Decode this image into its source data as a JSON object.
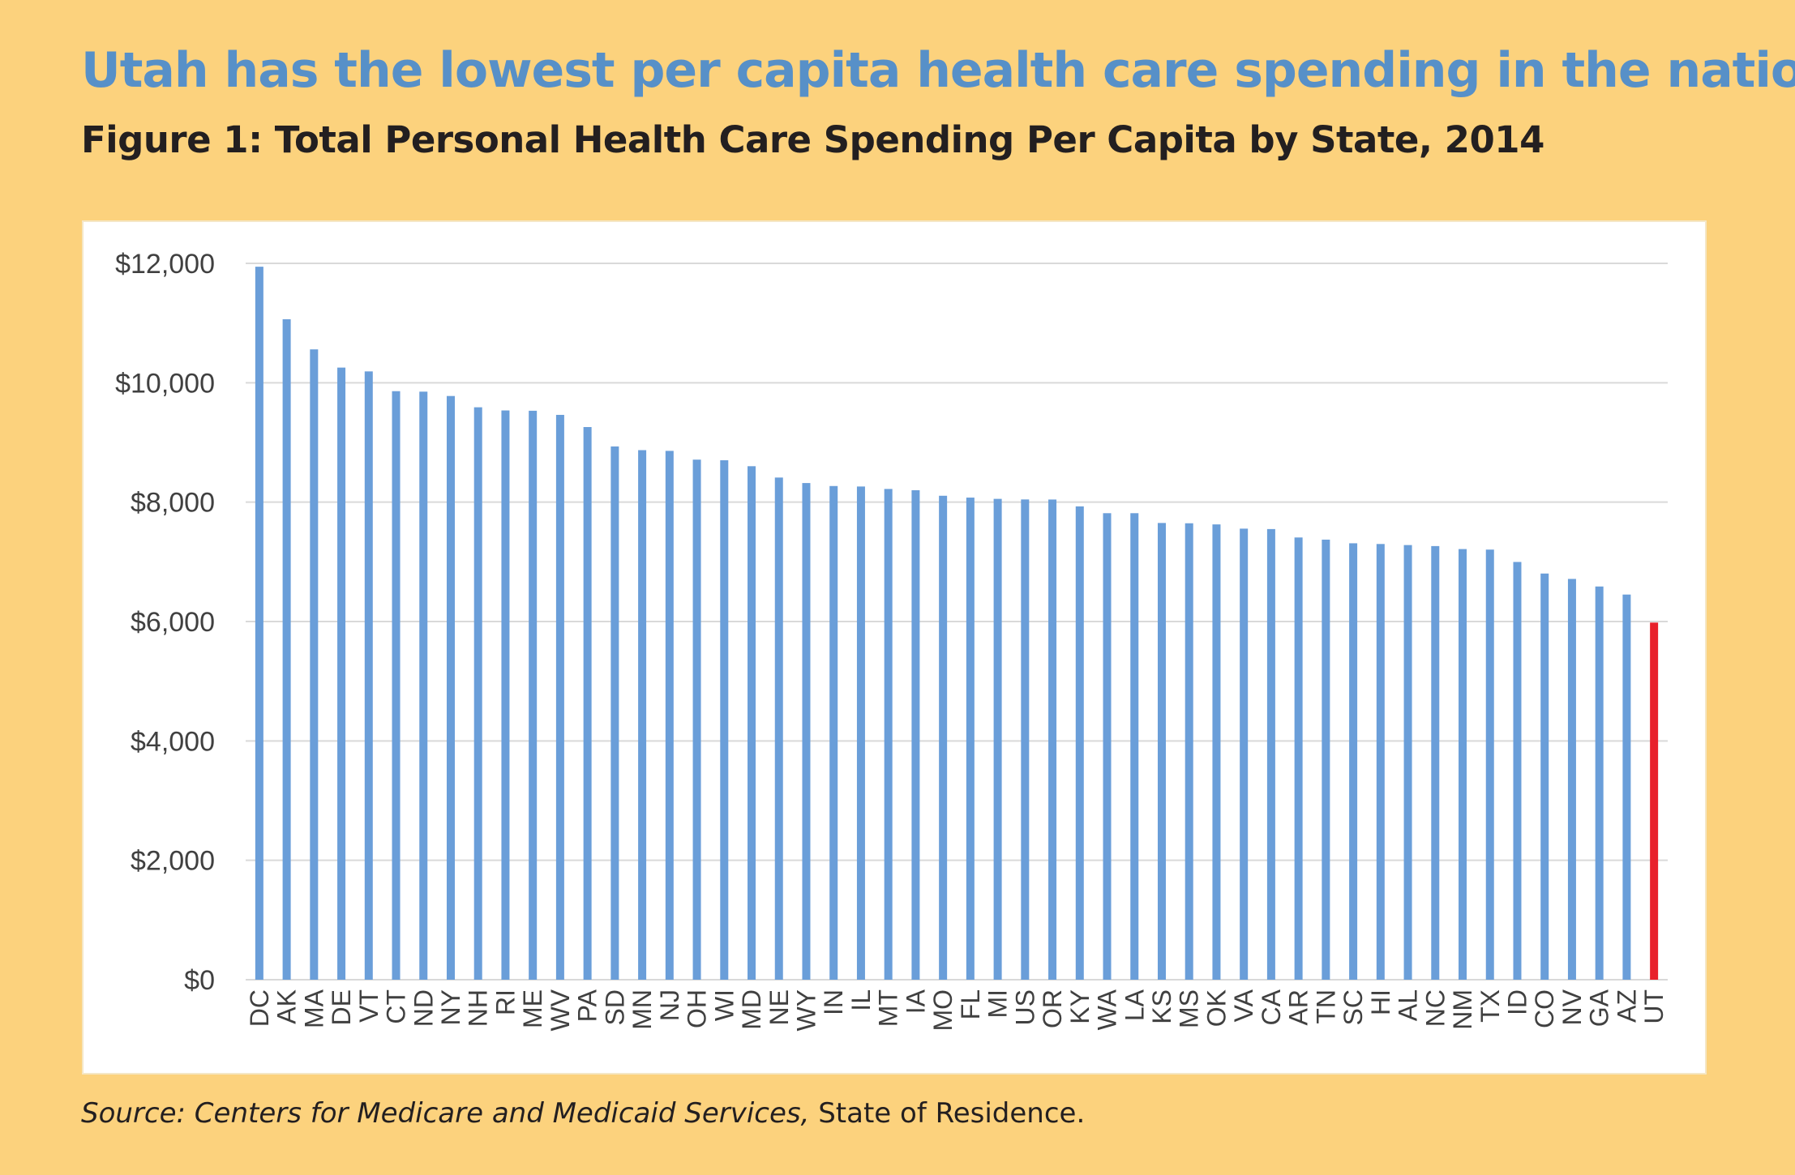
{
  "headline": "Utah has the lowest per capita health care spending in the nation.",
  "figure_title": "Figure 1: Total Personal Health Care Spending Per Capita by State, 2014",
  "source": {
    "italic": "Source: Centers for Medicare and Medicaid Services,",
    "regular": " State of Residence."
  },
  "colors": {
    "background": "#FCD27D",
    "headline": "#5790C8",
    "bar": "#6A9ED9",
    "highlight_bar": "#E8212B",
    "gridline": "#D9D9D9"
  },
  "chart_data": {
    "type": "bar",
    "title": "",
    "xlabel": "",
    "ylabel": "",
    "ylim": [
      0,
      12000
    ],
    "y_ticks": [
      "$0",
      "$2,000",
      "$4,000",
      "$6,000",
      "$8,000",
      "$10,000",
      "$12,000"
    ],
    "y_tick_values": [
      0,
      2000,
      4000,
      6000,
      8000,
      10000,
      12000
    ],
    "grid": true,
    "highlight": "UT",
    "categories": [
      "DC",
      "AK",
      "MA",
      "DE",
      "VT",
      "CT",
      "ND",
      "NY",
      "NH",
      "RI",
      "ME",
      "WV",
      "PA",
      "SD",
      "MN",
      "NJ",
      "OH",
      "WI",
      "MD",
      "NE",
      "WY",
      "IN",
      "IL",
      "MT",
      "IA",
      "MO",
      "FL",
      "MI",
      "US",
      "OR",
      "KY",
      "WA",
      "LA",
      "KS",
      "MS",
      "OK",
      "VA",
      "CA",
      "AR",
      "TN",
      "SC",
      "HI",
      "AL",
      "NC",
      "NM",
      "TX",
      "ID",
      "CO",
      "NV",
      "GA",
      "AZ",
      "UT"
    ],
    "values": [
      11944,
      11064,
      10559,
      10254,
      10190,
      9859,
      9851,
      9778,
      9589,
      9536,
      9531,
      9462,
      9258,
      8933,
      8871,
      8859,
      8712,
      8702,
      8602,
      8412,
      8320,
      8270,
      8262,
      8221,
      8200,
      8107,
      8076,
      8055,
      8045,
      8044,
      7929,
      7815,
      7815,
      7651,
      7646,
      7627,
      7556,
      7549,
      7408,
      7372,
      7311,
      7299,
      7281,
      7264,
      7214,
      7205,
      6998,
      6804,
      6714,
      6587,
      6452,
      5982
    ]
  }
}
